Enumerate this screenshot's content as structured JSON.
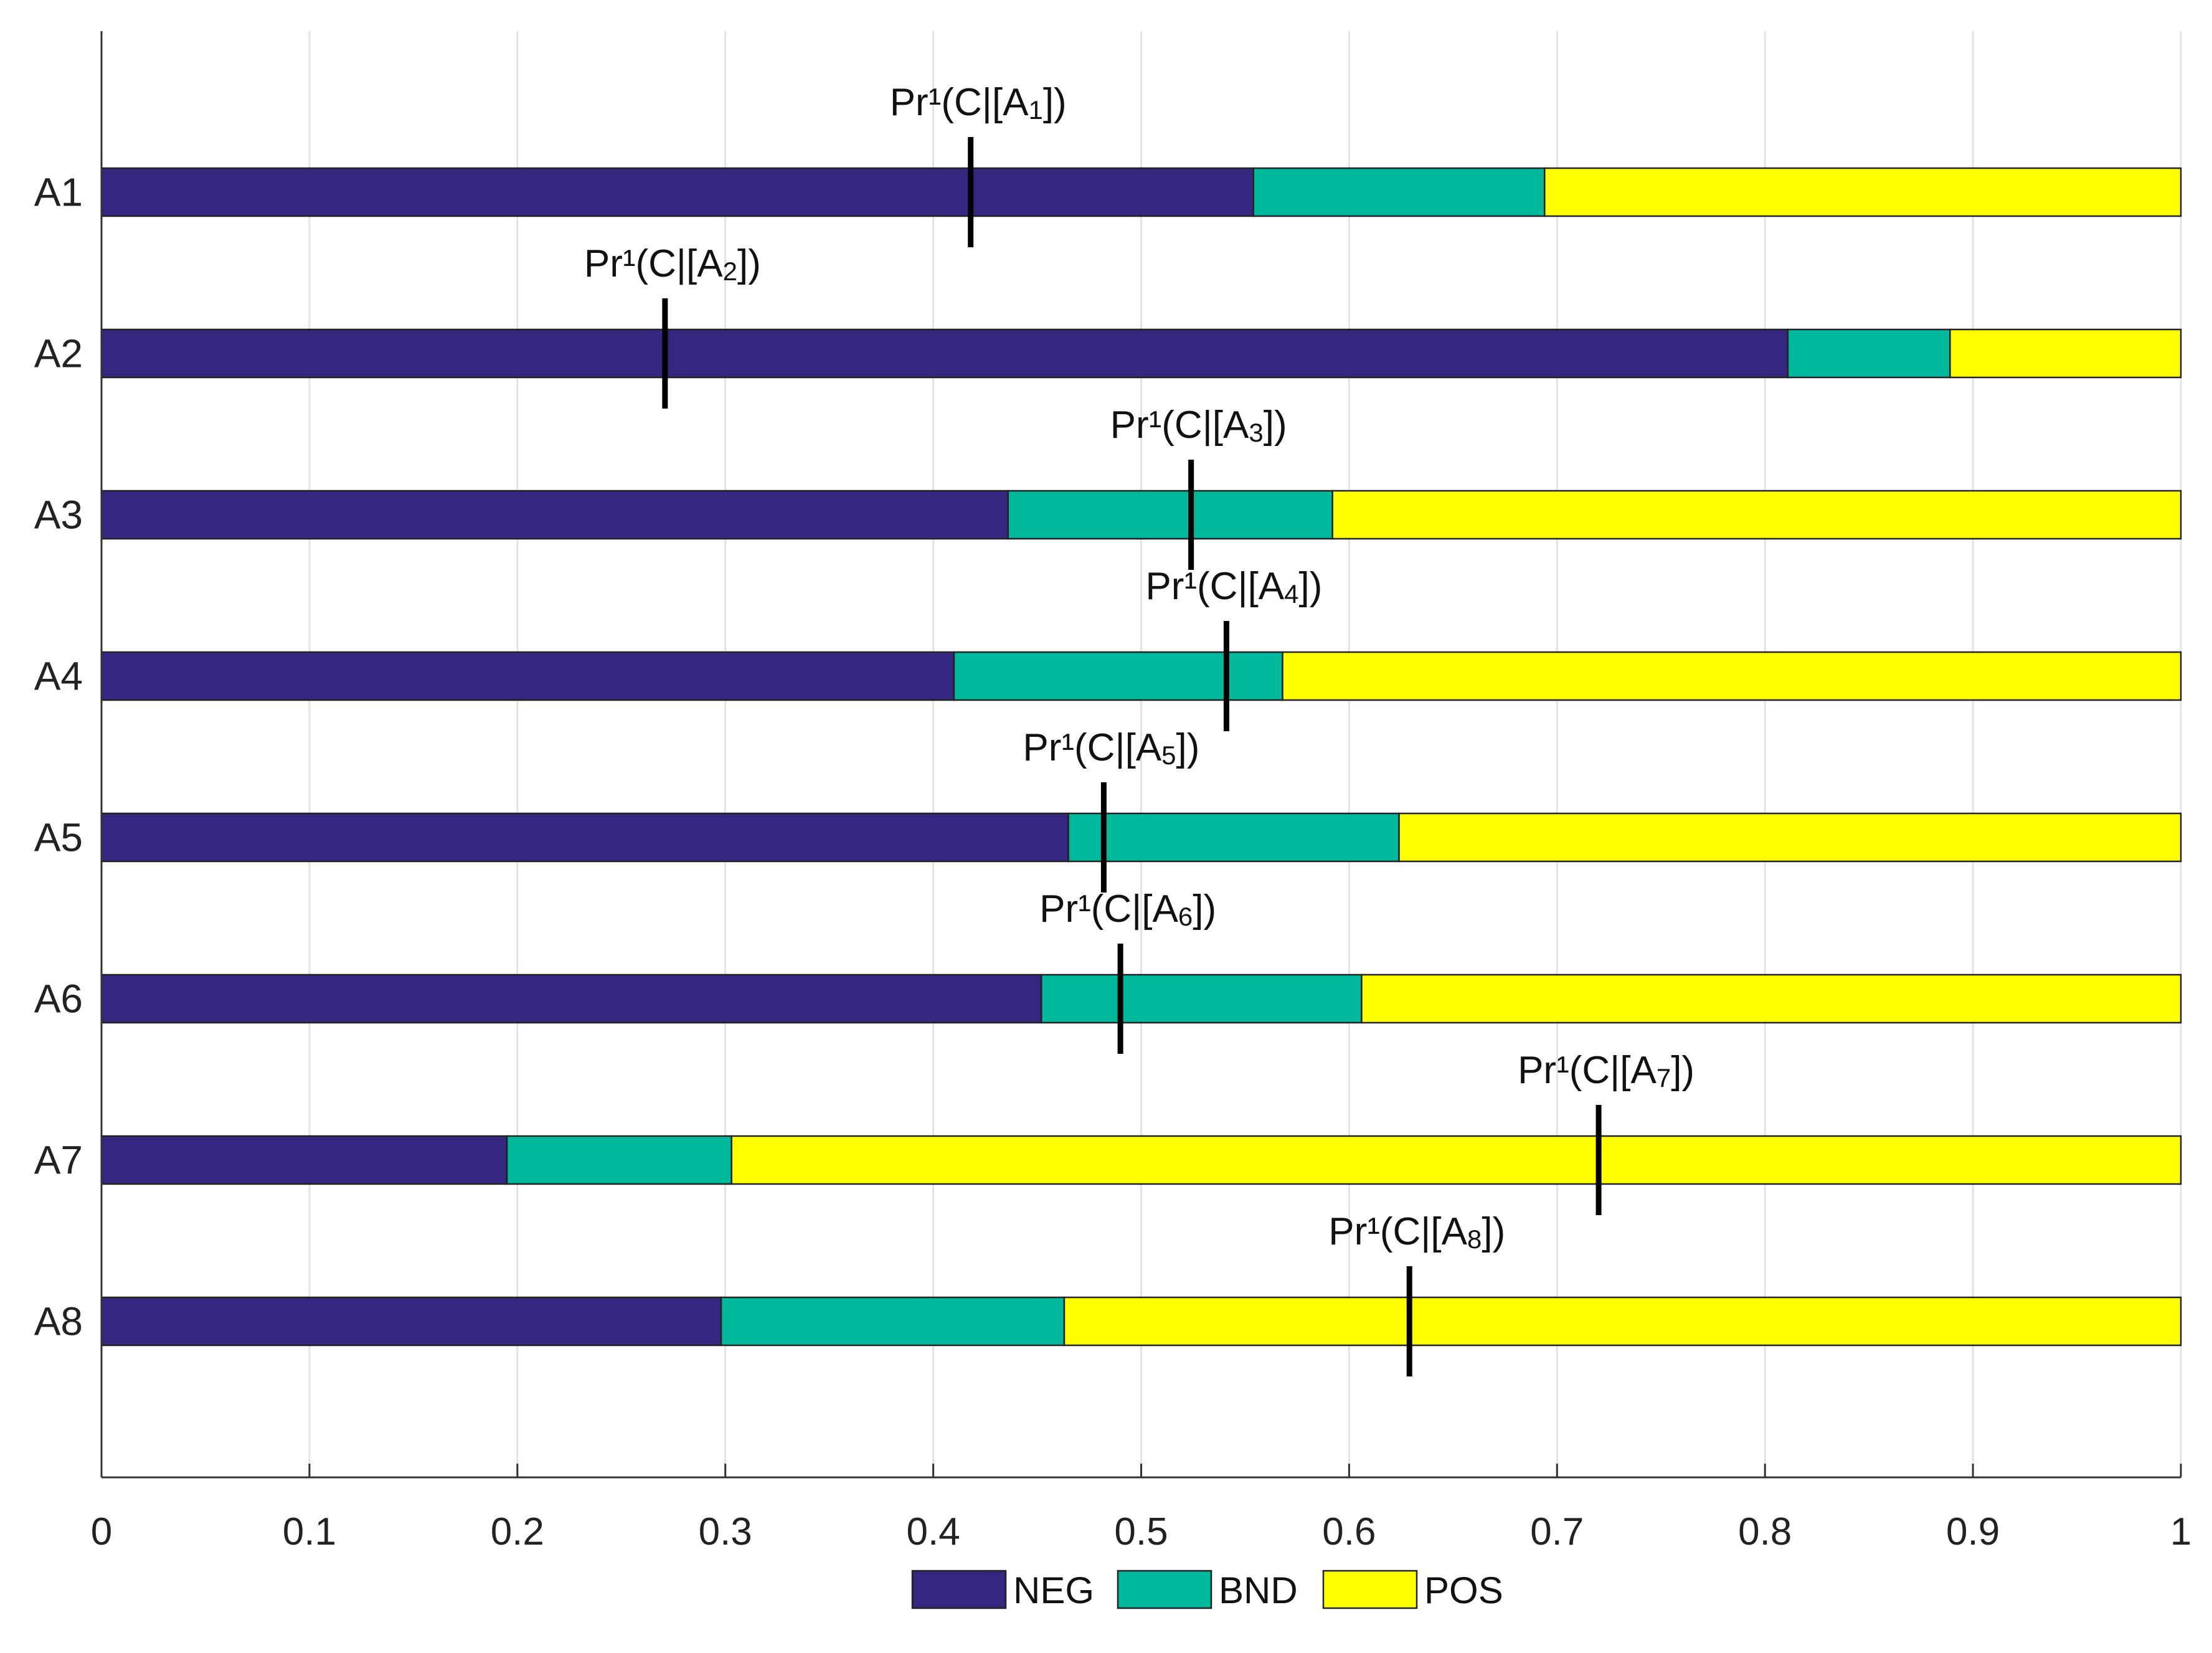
{
  "chart_data": {
    "type": "bar",
    "orientation": "horizontal",
    "stacked": true,
    "categories": [
      "A1",
      "A2",
      "A3",
      "A4",
      "A5",
      "A6",
      "A7",
      "A8"
    ],
    "series": [
      {
        "name": "NEG",
        "color": "#33277f",
        "values": [
          0.554,
          0.811,
          0.436,
          0.41,
          0.465,
          0.452,
          0.195,
          0.298
        ]
      },
      {
        "name": "BND",
        "color": "#00b89c",
        "values": [
          0.14,
          0.078,
          0.156,
          0.158,
          0.159,
          0.154,
          0.108,
          0.165
        ]
      },
      {
        "name": "POS",
        "color": "#ffff00",
        "values": [
          0.306,
          0.111,
          0.408,
          0.432,
          0.376,
          0.394,
          0.697,
          0.537
        ]
      }
    ],
    "markers": [
      {
        "category": "A1",
        "value": 0.418,
        "label": {
          "base": "Pr¹(C|[A",
          "sub": "1",
          "end": "])"
        }
      },
      {
        "category": "A2",
        "value": 0.271,
        "label": {
          "base": "Pr¹(C|[A",
          "sub": "2",
          "end": "])"
        }
      },
      {
        "category": "A3",
        "value": 0.524,
        "label": {
          "base": "Pr¹(C|[A",
          "sub": "3",
          "end": "])"
        }
      },
      {
        "category": "A4",
        "value": 0.541,
        "label": {
          "base": "Pr¹(C|[A",
          "sub": "4",
          "end": "])"
        }
      },
      {
        "category": "A5",
        "value": 0.482,
        "label": {
          "base": "Pr¹(C|[A",
          "sub": "5",
          "end": "])"
        }
      },
      {
        "category": "A6",
        "value": 0.49,
        "label": {
          "base": "Pr¹(C|[A",
          "sub": "6",
          "end": "])"
        }
      },
      {
        "category": "A7",
        "value": 0.72,
        "label": {
          "base": "Pr¹(C|[A",
          "sub": "7",
          "end": "])"
        }
      },
      {
        "category": "A8",
        "value": 0.629,
        "label": {
          "base": "Pr¹(C|[A",
          "sub": "8",
          "end": "])"
        }
      }
    ],
    "xlim": [
      0,
      1
    ],
    "xticks": [
      0,
      0.1,
      0.2,
      0.3,
      0.4,
      0.5,
      0.6,
      0.7,
      0.8,
      0.9,
      1
    ],
    "xtick_labels": [
      "0",
      "0.1",
      "0.2",
      "0.3",
      "0.4",
      "0.5",
      "0.6",
      "0.7",
      "0.8",
      "0.9",
      "1"
    ],
    "grid": true,
    "legend": {
      "position": "bottom-center",
      "orientation": "horizontal"
    },
    "title": "",
    "xlabel": "",
    "ylabel": ""
  }
}
